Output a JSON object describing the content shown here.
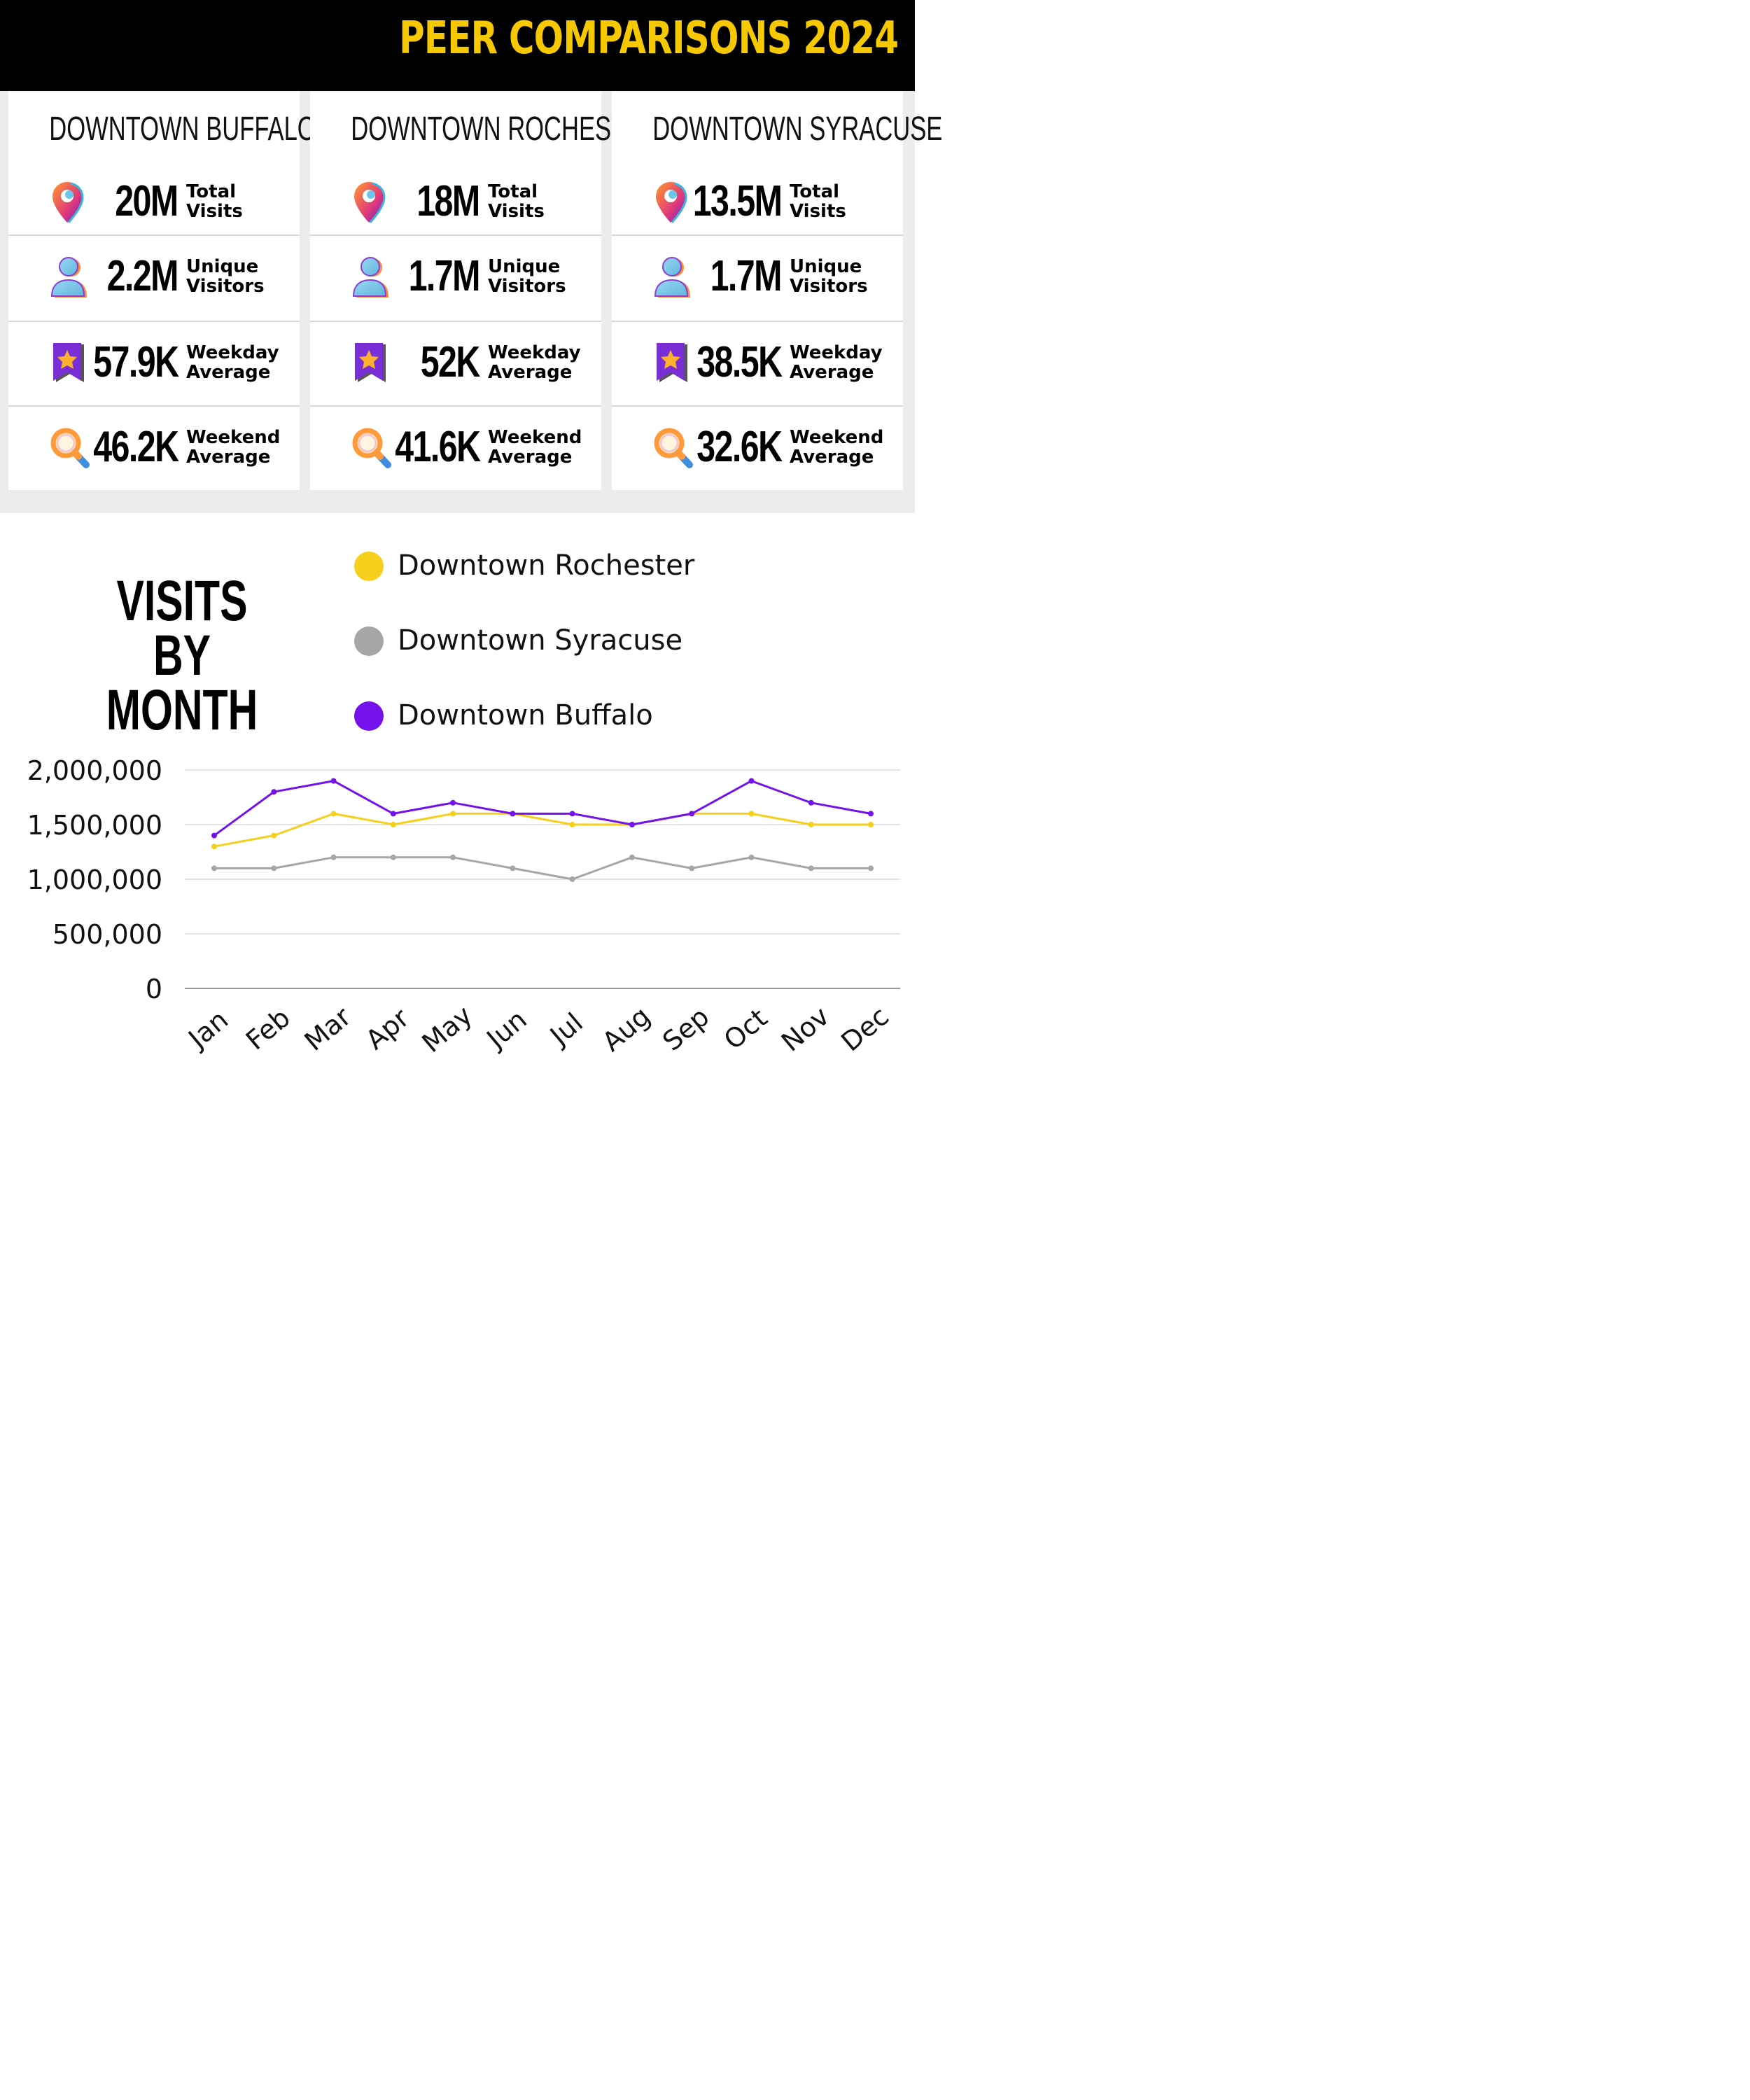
{
  "header": {
    "title": "PEER COMPARISONS 2024"
  },
  "stat_labels": {
    "total_visits": [
      "Total",
      "Visits"
    ],
    "unique_visitors": [
      "Unique",
      "Visitors"
    ],
    "weekday_average": [
      "Weekday",
      "Average"
    ],
    "weekend_average": [
      "Weekend",
      "Average"
    ]
  },
  "cards": [
    {
      "name": "DOWNTOWN BUFFALO",
      "total_visits": "20M",
      "unique_visitors": "2.2M",
      "weekday_average": "57.9K",
      "weekend_average": "46.2K"
    },
    {
      "name": "DOWNTOWN ROCHESTER",
      "total_visits": "18M",
      "unique_visitors": "1.7M",
      "weekday_average": "52K",
      "weekend_average": "41.6K"
    },
    {
      "name": "DOWNTOWN SYRACUSE",
      "total_visits": "13.5M",
      "unique_visitors": "1.7M",
      "weekday_average": "38.5K",
      "weekend_average": "32.6K"
    }
  ],
  "icons": {
    "total_visits": "location-pin-icon",
    "unique_visitors": "user-icon",
    "weekday_average": "star-bookmark-icon",
    "weekend_average": "magnifier-icon"
  },
  "colors": {
    "header_bg": "#000000",
    "header_text": "#f5c800",
    "rochester": "#f5cf1b",
    "syracuse": "#a6a6a6",
    "buffalo": "#7412eb"
  },
  "chart_data": {
    "type": "line",
    "title": "VISITS BY MONTH",
    "categories": [
      "Jan",
      "Feb",
      "Mar",
      "Apr",
      "May",
      "Jun",
      "Jul",
      "Aug",
      "Sep",
      "Oct",
      "Nov",
      "Dec"
    ],
    "series": [
      {
        "name": "Downtown Rochester",
        "color": "#f5cf1b",
        "values": [
          1300000,
          1400000,
          1600000,
          1500000,
          1600000,
          1600000,
          1500000,
          1500000,
          1600000,
          1600000,
          1500000,
          1500000
        ]
      },
      {
        "name": "Downtown Syracuse",
        "color": "#a6a6a6",
        "values": [
          1100000,
          1100000,
          1200000,
          1200000,
          1200000,
          1100000,
          1000000,
          1200000,
          1100000,
          1200000,
          1100000,
          1100000
        ]
      },
      {
        "name": "Downtown Buffalo",
        "color": "#7412eb",
        "values": [
          1400000,
          1800000,
          1900000,
          1600000,
          1700000,
          1600000,
          1600000,
          1500000,
          1600000,
          1900000,
          1700000,
          1600000
        ]
      }
    ],
    "ylim": [
      0,
      2000000
    ],
    "yticks": [
      "0",
      "500,000",
      "1,000,000",
      "1,500,000",
      "2,000,000"
    ],
    "grid": true,
    "legend_position": "top"
  }
}
